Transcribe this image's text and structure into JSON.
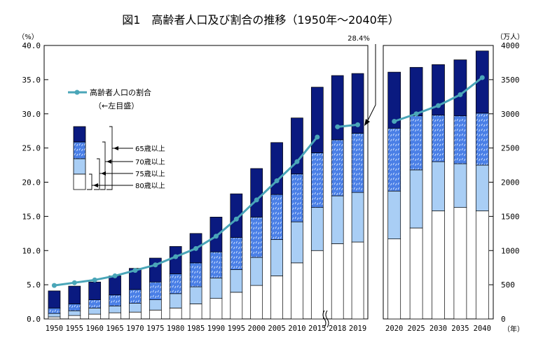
{
  "title": "図1　高齢者人口及び割合の推移（1950年～2040年）",
  "left_unit": "（%）",
  "right_unit": "（万人）",
  "year_unit": "（年）",
  "peak_label": "28.4%",
  "legend": {
    "line_name": "高齢者人口の割合",
    "line_note": "（←左目盛）",
    "bracket_labels": [
      "65歳以上",
      "70歳以上",
      "75歳以上",
      "80歳以上"
    ]
  },
  "colors": {
    "c80": "#ffffff",
    "c75": "#a9cef5",
    "c70": "#4a7fe6",
    "c65": "#0a1a80",
    "line": "#4aa6b8"
  },
  "chart_data": {
    "type": "bar",
    "stacked": true,
    "left_axis": {
      "label": "（%）",
      "ylim": [
        0,
        40
      ],
      "ticks": [
        "0.0",
        "5.0",
        "10.0",
        "15.0",
        "20.0",
        "25.0",
        "30.0",
        "35.0",
        "40.0"
      ]
    },
    "right_axis": {
      "label": "（万人）",
      "ylim": [
        0,
        4000
      ],
      "ticks": [
        "0",
        "500",
        "1000",
        "1500",
        "2000",
        "2500",
        "3000",
        "3500",
        "4000"
      ]
    },
    "panels": [
      {
        "categories": [
          "1950",
          "1955",
          "1960",
          "1965",
          "1970",
          "1975",
          "1980",
          "1985",
          "1990",
          "1995",
          "2000",
          "2005",
          "2010",
          "2015",
          "2018",
          "2019"
        ],
        "series": [
          {
            "name": "80歳以上",
            "values": [
              30,
              50,
              70,
              90,
              100,
              130,
              160,
              220,
              300,
              390,
              490,
              630,
              820,
              1000,
              1100,
              1125
            ]
          },
          {
            "name": "75歳以上",
            "values": [
              50,
              70,
              90,
              100,
              130,
              150,
              210,
              250,
              300,
              330,
              410,
              530,
              600,
              630,
              700,
              725
            ]
          },
          {
            "name": "70歳以上",
            "values": [
              80,
              100,
              120,
              160,
              200,
              260,
              290,
              350,
              380,
              470,
              590,
              660,
              700,
              800,
              820,
              865
            ]
          },
          {
            "name": "65歳以上",
            "values": [
              250,
              260,
              260,
              280,
              310,
              350,
              400,
              430,
              510,
              640,
              710,
              760,
              820,
              960,
              940,
              875
            ]
          }
        ],
        "line_break_after": "2015",
        "line": {
          "name": "高齢者人口の割合",
          "values": [
            4.9,
            5.3,
            5.7,
            6.3,
            7.1,
            7.9,
            9.1,
            10.3,
            12.1,
            14.6,
            17.4,
            20.2,
            23.0,
            26.6,
            28.1,
            28.4
          ]
        }
      },
      {
        "categories": [
          "2020",
          "2025",
          "2030",
          "2035",
          "2040"
        ],
        "series": [
          {
            "name": "80歳以上",
            "values": [
              1170,
              1330,
              1580,
              1630,
              1580
            ]
          },
          {
            "name": "75歳以上",
            "values": [
              700,
              850,
              720,
              640,
              670
            ]
          },
          {
            "name": "70歳以上",
            "values": [
              920,
              790,
              680,
              700,
              760
            ]
          },
          {
            "name": "65歳以上",
            "values": [
              820,
              710,
              740,
              820,
              910
            ]
          }
        ],
        "line": {
          "name": "高齢者人口の割合",
          "values": [
            28.9,
            30.0,
            31.2,
            32.8,
            35.3
          ]
        }
      }
    ],
    "grid": false,
    "legend_position": "top-left"
  }
}
